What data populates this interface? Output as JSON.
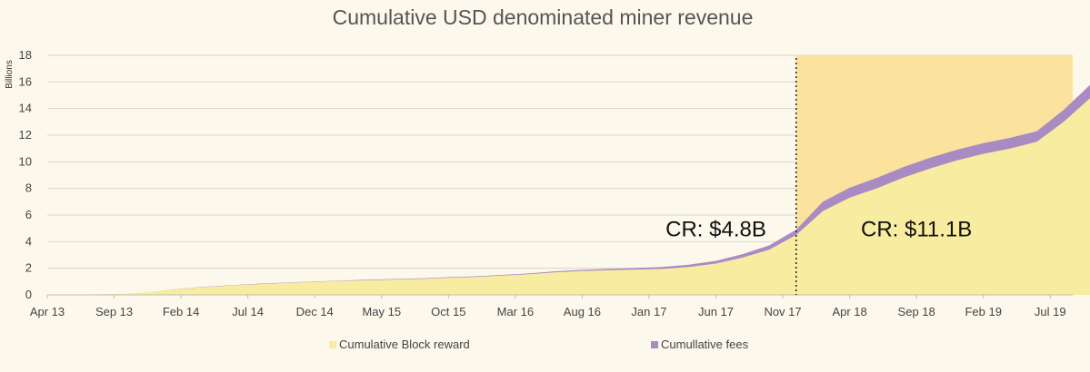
{
  "chart_data": {
    "type": "area",
    "title": "Cumulative USD denominated miner revenue",
    "ylabel": "Billions",
    "xlabel": "",
    "ylim": [
      0,
      18
    ],
    "yticks": [
      0,
      2,
      4,
      6,
      8,
      10,
      12,
      14,
      16,
      18
    ],
    "grid": true,
    "stacked": true,
    "legend_position": "bottom",
    "x_tick_labels": [
      "Apr 13",
      "Sep 13",
      "Feb 14",
      "Jul 14",
      "Dec 14",
      "May 15",
      "Oct 15",
      "Mar 16",
      "Aug 16",
      "Jan 17",
      "Jun 17",
      "Nov 17",
      "Apr 18",
      "Sep 18",
      "Feb 19",
      "Jul 19"
    ],
    "x": [
      "Apr 13",
      "Jun 13",
      "Aug 13",
      "Oct 13",
      "Dec 13",
      "Feb 14",
      "Apr 14",
      "Jun 14",
      "Aug 14",
      "Oct 14",
      "Dec 14",
      "Feb 15",
      "Apr 15",
      "Jun 15",
      "Aug 15",
      "Oct 15",
      "Dec 15",
      "Feb 16",
      "Apr 16",
      "Jun 16",
      "Aug 16",
      "Oct 16",
      "Dec 16",
      "Feb 17",
      "Apr 17",
      "Jun 17",
      "Aug 17",
      "Oct 17",
      "Dec 17",
      "Feb 18",
      "Apr 18",
      "Jun 18",
      "Aug 18",
      "Oct 18",
      "Dec 18",
      "Feb 19",
      "Apr 19",
      "Jun 19",
      "Aug 19",
      "Oct 19"
    ],
    "series": [
      {
        "name": "Cumulative Block reward",
        "color": "#f7ec9f",
        "values": [
          0.0,
          0.02,
          0.05,
          0.1,
          0.25,
          0.45,
          0.6,
          0.72,
          0.82,
          0.9,
          0.98,
          1.05,
          1.1,
          1.15,
          1.2,
          1.28,
          1.35,
          1.45,
          1.55,
          1.7,
          1.8,
          1.85,
          1.9,
          1.95,
          2.1,
          2.35,
          2.8,
          3.4,
          4.5,
          6.3,
          7.3,
          8.0,
          8.8,
          9.5,
          10.1,
          10.6,
          11.0,
          11.5,
          13.0,
          14.8
        ]
      },
      {
        "name": "Cumullative fees",
        "color": "#a98bc4",
        "values": [
          0.0,
          0.0,
          0.0,
          0.0,
          0.01,
          0.02,
          0.02,
          0.02,
          0.03,
          0.03,
          0.03,
          0.03,
          0.04,
          0.04,
          0.04,
          0.05,
          0.05,
          0.05,
          0.06,
          0.07,
          0.08,
          0.1,
          0.12,
          0.14,
          0.17,
          0.21,
          0.26,
          0.32,
          0.4,
          0.7,
          0.75,
          0.78,
          0.8,
          0.8,
          0.8,
          0.8,
          0.8,
          0.8,
          0.9,
          1.0
        ]
      }
    ],
    "shaded_region": {
      "from": "Dec 17",
      "to": "Oct 19",
      "color": "#fbe39e"
    },
    "vline": {
      "x": "Dec 17",
      "style": "dotted"
    },
    "annotations": [
      {
        "text": "CR: $4.8B",
        "x": "Jun 17",
        "y": 5.0
      },
      {
        "text": "CR: $11.1B",
        "x": "Sep 18",
        "y": 5.0
      }
    ]
  }
}
